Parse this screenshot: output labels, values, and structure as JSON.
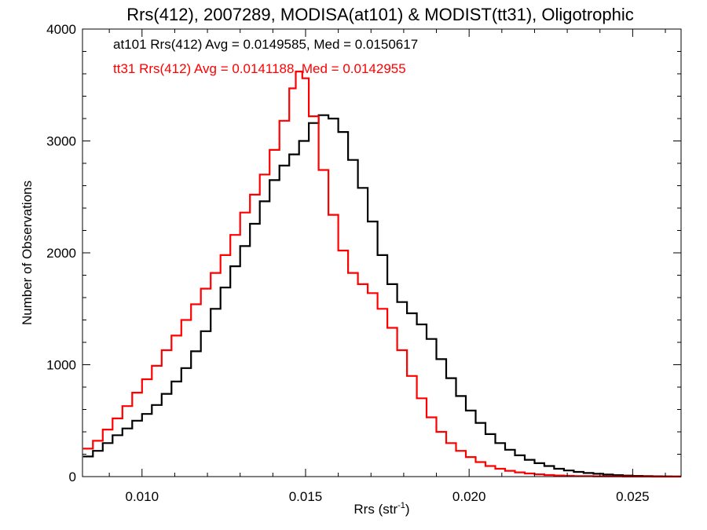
{
  "chart_data": {
    "type": "histogram",
    "title": "Rrs(412), 2007289, MODISA(at101) & MODIST(tt31), Oligotrophic",
    "xlabel_base": "Rrs (str",
    "xlabel_sup": "-1",
    "xlabel_close": ")",
    "ylabel": "Number of Observations",
    "xlim": [
      0.00818,
      0.02648
    ],
    "ylim": [
      0,
      4000
    ],
    "xticks": [
      {
        "v": 0.01,
        "label": "0.010"
      },
      {
        "v": 0.015,
        "label": "0.015"
      },
      {
        "v": 0.02,
        "label": "0.020"
      },
      {
        "v": 0.025,
        "label": "0.025"
      }
    ],
    "yticks": [
      {
        "v": 0,
        "label": "0"
      },
      {
        "v": 1000,
        "label": "1000"
      },
      {
        "v": 2000,
        "label": "2000"
      },
      {
        "v": 3000,
        "label": "3000"
      },
      {
        "v": 4000,
        "label": "4000"
      }
    ],
    "xminor_step": 0.001,
    "yminor_step": 200,
    "grid": false,
    "series": [
      {
        "name": "at101",
        "stat_text": "at101 Rrs(412) Avg = 0.0149585, Med = 0.0150617",
        "color": "#000000",
        "points": [
          [
            0.0082,
            180
          ],
          [
            0.0085,
            230
          ],
          [
            0.0088,
            300
          ],
          [
            0.0091,
            370
          ],
          [
            0.0094,
            430
          ],
          [
            0.0097,
            500
          ],
          [
            0.01,
            560
          ],
          [
            0.0103,
            640
          ],
          [
            0.0106,
            740
          ],
          [
            0.0109,
            850
          ],
          [
            0.0112,
            970
          ],
          [
            0.0115,
            1120
          ],
          [
            0.0118,
            1300
          ],
          [
            0.0121,
            1500
          ],
          [
            0.0124,
            1690
          ],
          [
            0.0127,
            1880
          ],
          [
            0.013,
            2060
          ],
          [
            0.0133,
            2260
          ],
          [
            0.0136,
            2460
          ],
          [
            0.0139,
            2650
          ],
          [
            0.0142,
            2780
          ],
          [
            0.0145,
            2880
          ],
          [
            0.0148,
            3000
          ],
          [
            0.0151,
            3160
          ],
          [
            0.0154,
            3230
          ],
          [
            0.0157,
            3200
          ],
          [
            0.016,
            3080
          ],
          [
            0.0163,
            2830
          ],
          [
            0.0166,
            2580
          ],
          [
            0.0169,
            2280
          ],
          [
            0.0172,
            1980
          ],
          [
            0.0175,
            1720
          ],
          [
            0.0178,
            1560
          ],
          [
            0.0181,
            1460
          ],
          [
            0.0184,
            1360
          ],
          [
            0.0187,
            1230
          ],
          [
            0.019,
            1050
          ],
          [
            0.0193,
            880
          ],
          [
            0.0196,
            720
          ],
          [
            0.0199,
            590
          ],
          [
            0.0202,
            480
          ],
          [
            0.0205,
            380
          ],
          [
            0.0208,
            300
          ],
          [
            0.0211,
            240
          ],
          [
            0.0214,
            190
          ],
          [
            0.0217,
            150
          ],
          [
            0.022,
            120
          ],
          [
            0.0223,
            95
          ],
          [
            0.0226,
            70
          ],
          [
            0.0229,
            55
          ],
          [
            0.0232,
            42
          ],
          [
            0.0235,
            32
          ],
          [
            0.0238,
            25
          ],
          [
            0.0241,
            18
          ],
          [
            0.0244,
            13
          ],
          [
            0.0247,
            9
          ],
          [
            0.025,
            6
          ],
          [
            0.0253,
            4
          ],
          [
            0.0256,
            3
          ],
          [
            0.0259,
            2
          ],
          [
            0.0262,
            1
          ],
          [
            0.0265,
            1
          ]
        ]
      },
      {
        "name": "tt31",
        "stat_text": "tt31 Rrs(412) Avg = 0.0141188, Med = 0.0142955",
        "color": "#ff0000",
        "points": [
          [
            0.0082,
            250
          ],
          [
            0.0085,
            320
          ],
          [
            0.0088,
            420
          ],
          [
            0.0091,
            520
          ],
          [
            0.0094,
            630
          ],
          [
            0.0097,
            750
          ],
          [
            0.01,
            870
          ],
          [
            0.0103,
            990
          ],
          [
            0.0106,
            1130
          ],
          [
            0.0109,
            1260
          ],
          [
            0.0112,
            1400
          ],
          [
            0.0115,
            1540
          ],
          [
            0.0118,
            1680
          ],
          [
            0.0121,
            1820
          ],
          [
            0.0124,
            1980
          ],
          [
            0.0127,
            2160
          ],
          [
            0.013,
            2360
          ],
          [
            0.0133,
            2520
          ],
          [
            0.0136,
            2700
          ],
          [
            0.0139,
            2920
          ],
          [
            0.0142,
            3180
          ],
          [
            0.0145,
            3470
          ],
          [
            0.0147,
            3620
          ],
          [
            0.0149,
            3560
          ],
          [
            0.0151,
            3220
          ],
          [
            0.0154,
            2740
          ],
          [
            0.0157,
            2340
          ],
          [
            0.016,
            2020
          ],
          [
            0.0163,
            1820
          ],
          [
            0.0166,
            1720
          ],
          [
            0.0169,
            1640
          ],
          [
            0.0172,
            1500
          ],
          [
            0.0175,
            1330
          ],
          [
            0.0178,
            1130
          ],
          [
            0.0181,
            900
          ],
          [
            0.0184,
            700
          ],
          [
            0.0187,
            530
          ],
          [
            0.019,
            400
          ],
          [
            0.0193,
            300
          ],
          [
            0.0196,
            230
          ],
          [
            0.0199,
            175
          ],
          [
            0.0202,
            130
          ],
          [
            0.0205,
            95
          ],
          [
            0.0208,
            70
          ],
          [
            0.0211,
            52
          ],
          [
            0.0214,
            38
          ],
          [
            0.0217,
            28
          ],
          [
            0.022,
            20
          ],
          [
            0.0223,
            14
          ],
          [
            0.0226,
            10
          ],
          [
            0.0229,
            7
          ],
          [
            0.0232,
            5
          ],
          [
            0.0235,
            4
          ],
          [
            0.0238,
            3
          ],
          [
            0.0241,
            2
          ],
          [
            0.0244,
            2
          ],
          [
            0.0247,
            1
          ],
          [
            0.025,
            1
          ],
          [
            0.0253,
            1
          ],
          [
            0.0256,
            0
          ],
          [
            0.0259,
            0
          ],
          [
            0.0262,
            0
          ],
          [
            0.0265,
            0
          ]
        ]
      }
    ]
  }
}
